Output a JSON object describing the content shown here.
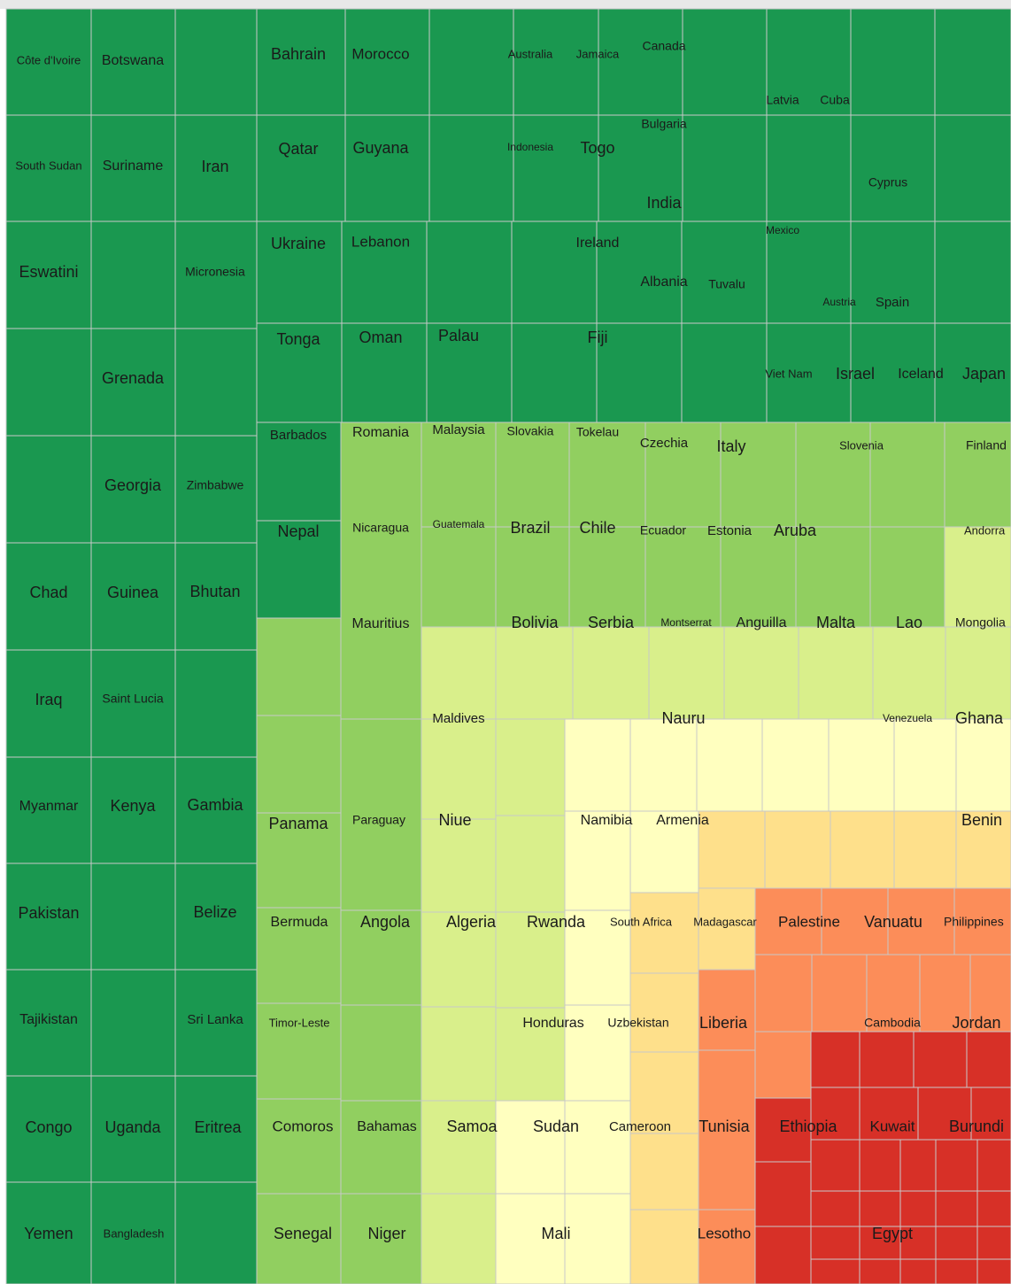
{
  "labels": [
    "Côte d'Ivoire",
    "Botswana",
    "South Sudan",
    "Suriname",
    "Iran",
    "Eswatini",
    "Micronesia",
    "Grenada",
    "Georgia",
    "Zimbabwe",
    "Chad",
    "Guinea",
    "Bhutan",
    "Iraq",
    "Saint Lucia",
    "Myanmar",
    "Kenya",
    "Gambia",
    "Pakistan",
    "Belize",
    "Tajikistan",
    "Sri Lanka",
    "Congo",
    "Uganda",
    "Eritrea",
    "Yemen",
    "Bangladesh",
    "Bahrain",
    "Morocco",
    "Australia",
    "Jamaica",
    "Canada",
    "Latvia",
    "Cuba",
    "Qatar",
    "Guyana",
    "Indonesia",
    "Togo",
    "Bulgaria",
    "India",
    "Cyprus",
    "Ukraine",
    "Lebanon",
    "Ireland",
    "Mexico",
    "Albania",
    "Tuvalu",
    "Austria",
    "Spain",
    "Tonga",
    "Oman",
    "Palau",
    "Fiji",
    "Viet Nam",
    "Israel",
    "Iceland",
    "Japan",
    "Barbados",
    "Nepal",
    "Romania",
    "Malaysia",
    "Slovakia",
    "Tokelau",
    "Czechia",
    "Italy",
    "Slovenia",
    "Finland",
    "Nicaragua",
    "Guatemala",
    "Brazil",
    "Chile",
    "Ecuador",
    "Estonia",
    "Aruba",
    "Andorra",
    "Mauritius",
    "Bolivia",
    "Serbia",
    "Montserrat",
    "Anguilla",
    "Malta",
    "Lao",
    "Mongolia",
    "Maldives",
    "Nauru",
    "Venezuela",
    "Ghana",
    "Panama",
    "Paraguay",
    "Niue",
    "Namibia",
    "Armenia",
    "Benin",
    "Bermuda",
    "Angola",
    "Algeria",
    "Rwanda",
    "South Africa",
    "Madagascar",
    "Palestine",
    "Vanuatu",
    "Philippines",
    "Timor-Leste",
    "Honduras",
    "Uzbekistan",
    "Liberia",
    "Cambodia",
    "Jordan",
    "Comoros",
    "Bahamas",
    "Samoa",
    "Sudan",
    "Cameroon",
    "Tunisia",
    "Ethiopia",
    "Kuwait",
    "Burundi",
    "Senegal",
    "Niger",
    "Mali",
    "Lesotho",
    "Egypt"
  ]
}
